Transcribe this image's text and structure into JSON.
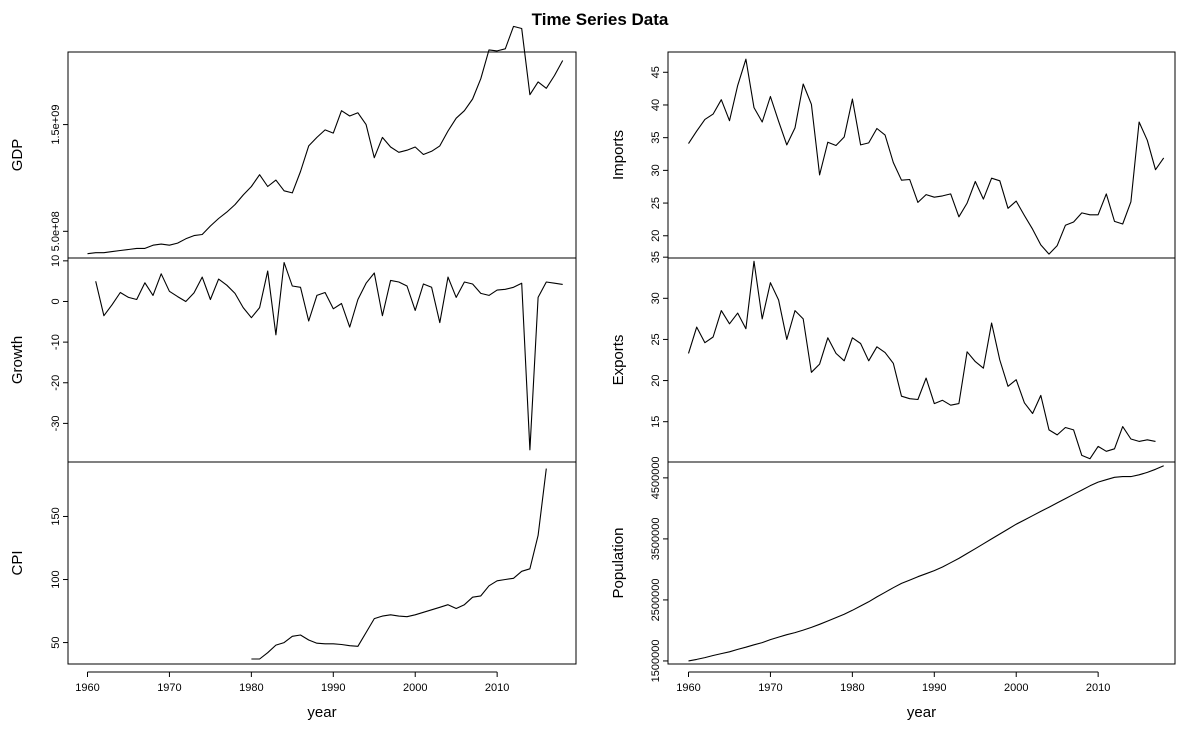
{
  "chart_data": {
    "type": "line",
    "title": "Time Series Data",
    "xlabel": "year",
    "xlim": [
      1960,
      2017
    ],
    "xticks": [
      "1960",
      "1970",
      "1980",
      "1990",
      "2000",
      "2010"
    ],
    "panels": [
      {
        "id": "gdp",
        "ylabel": "GDP",
        "yticks": [
          "5.0e+08",
          "1.5e+09"
        ],
        "ytick_values": [
          500000000,
          1500000000
        ],
        "ylim": [
          250000000,
          2180000000
        ],
        "x_start": 1960,
        "values": [
          290000000,
          300000000,
          300000000,
          310000000,
          320000000,
          330000000,
          340000000,
          340000000,
          370000000,
          380000000,
          370000000,
          390000000,
          430000000,
          460000000,
          470000000,
          550000000,
          620000000,
          680000000,
          750000000,
          840000000,
          920000000,
          1030000000,
          920000000,
          980000000,
          880000000,
          860000000,
          1060000000,
          1300000000,
          1380000000,
          1450000000,
          1420000000,
          1630000000,
          1580000000,
          1610000000,
          1500000000,
          1190000000,
          1380000000,
          1290000000,
          1240000000,
          1260000000,
          1290000000,
          1220000000,
          1250000000,
          1300000000,
          1440000000,
          1560000000,
          1630000000,
          1740000000,
          1930000000,
          2200000000,
          2190000000,
          2210000000,
          2420000000,
          2400000000,
          1780000000,
          1900000000,
          1840000000,
          1960000000,
          2100000000
        ]
      },
      {
        "id": "growth",
        "ylabel": "Growth",
        "yticks": [
          "10",
          "0",
          "-10",
          "-20",
          "-30"
        ],
        "ytick_values": [
          10,
          0,
          -10,
          -20,
          -30
        ],
        "ylim": [
          -39.5,
          10.7
        ],
        "x_start": 1961,
        "values": [
          5,
          -3.5,
          -0.8,
          2.2,
          1,
          0.5,
          4.6,
          1.5,
          6.8,
          2.5,
          1.2,
          0,
          2.1,
          6,
          0.5,
          5.5,
          4,
          2,
          -1.5,
          -4,
          -1.5,
          7.5,
          -8.2,
          9.6,
          3.8,
          3.5,
          -4.8,
          1.5,
          2.2,
          -1.8,
          -0.5,
          -6.3,
          0.5,
          4.5,
          7,
          -3.5,
          5.2,
          4.8,
          3.8,
          -2.2,
          4.3,
          3.5,
          -5.2,
          6,
          1,
          4.8,
          4.3,
          2,
          1.5,
          2.8,
          3,
          3.5,
          4.5,
          -36.5,
          1,
          4.8,
          4.5,
          4.2
        ]
      },
      {
        "id": "cpi",
        "ylabel": "CPI",
        "yticks": [
          "50",
          "100",
          "150"
        ],
        "ytick_values": [
          50,
          100,
          150
        ],
        "ylim": [
          33,
          193.2
        ],
        "x_start": 1980,
        "values": [
          37,
          37,
          42,
          48,
          50,
          55,
          56,
          52,
          49.5,
          49,
          49,
          48.5,
          47.5,
          47,
          58,
          69,
          71,
          72,
          71,
          70.5,
          72,
          74,
          76,
          78,
          80,
          77,
          80,
          86,
          87,
          95,
          99,
          100,
          101,
          106.5,
          108.5,
          135,
          188
        ]
      },
      {
        "id": "imports",
        "ylabel": "Imports",
        "yticks": [
          "20",
          "25",
          "30",
          "35",
          "40",
          "45"
        ],
        "ytick_values": [
          20,
          25,
          30,
          35,
          40,
          45
        ],
        "ylim": [
          16.6,
          48.1
        ],
        "x_start": 1960,
        "values": [
          34.1,
          36,
          37.8,
          38.6,
          40.8,
          37.6,
          43,
          47,
          39.6,
          37.4,
          41.3,
          37.5,
          33.9,
          36.5,
          43.2,
          40.1,
          29.3,
          34.3,
          33.8,
          35.1,
          40.9,
          33.9,
          34.2,
          36.4,
          35.4,
          31.2,
          28.5,
          28.6,
          25.1,
          26.3,
          25.9,
          26.1,
          26.4,
          22.9,
          25,
          28.3,
          25.6,
          28.8,
          28.4,
          24.2,
          25.3,
          23.1,
          21,
          18.6,
          17.2,
          18.5,
          21.6,
          22.1,
          23.5,
          23.2,
          23.2,
          26.4,
          22.2,
          21.8,
          25.2,
          37.4,
          34.6,
          30.1,
          31.9
        ]
      },
      {
        "id": "exports",
        "ylabel": "Exports",
        "yticks": [
          "15",
          "20",
          "25",
          "30",
          "35"
        ],
        "ytick_values": [
          15,
          20,
          25,
          30,
          35
        ],
        "ylim": [
          10.1,
          34.9
        ],
        "x_start": 1960,
        "values": [
          23.3,
          26.5,
          24.6,
          25.3,
          28.5,
          26.9,
          28.2,
          26.3,
          34.5,
          27.5,
          31.9,
          29.8,
          25,
          28.5,
          27.5,
          21,
          22,
          25.2,
          23.3,
          22.4,
          25.2,
          24.5,
          22.4,
          24.1,
          23.4,
          22.1,
          18.1,
          17.8,
          17.7,
          20.3,
          17.2,
          17.6,
          17,
          17.2,
          23.5,
          22.3,
          21.5,
          27,
          22.5,
          19.3,
          20.1,
          17.3,
          16,
          18.2,
          14,
          13.4,
          14.3,
          14,
          10.9,
          10.5,
          12,
          11.4,
          11.7,
          14.4,
          12.9,
          12.6,
          12.8,
          12.6
        ]
      },
      {
        "id": "population",
        "ylabel": "Population",
        "yticks": [
          "1500000",
          "2500000",
          "3500000",
          "4500000"
        ],
        "ytick_values": [
          1500000,
          2500000,
          3500000,
          4500000
        ],
        "ylim": [
          1450000,
          4760000
        ],
        "x_start": 1960,
        "values": [
          1500000,
          1525000,
          1555000,
          1590000,
          1620000,
          1650000,
          1690000,
          1725000,
          1765000,
          1800000,
          1850000,
          1890000,
          1930000,
          1965000,
          2005000,
          2050000,
          2100000,
          2155000,
          2210000,
          2265000,
          2330000,
          2400000,
          2470000,
          2550000,
          2625000,
          2700000,
          2770000,
          2825000,
          2880000,
          2930000,
          2980000,
          3040000,
          3110000,
          3180000,
          3260000,
          3340000,
          3420000,
          3500000,
          3580000,
          3660000,
          3740000,
          3810000,
          3880000,
          3950000,
          4020000,
          4090000,
          4160000,
          4230000,
          4300000,
          4370000,
          4430000,
          4470000,
          4510000,
          4520000,
          4520000,
          4550000,
          4590000,
          4640000,
          4700000
        ]
      }
    ]
  }
}
